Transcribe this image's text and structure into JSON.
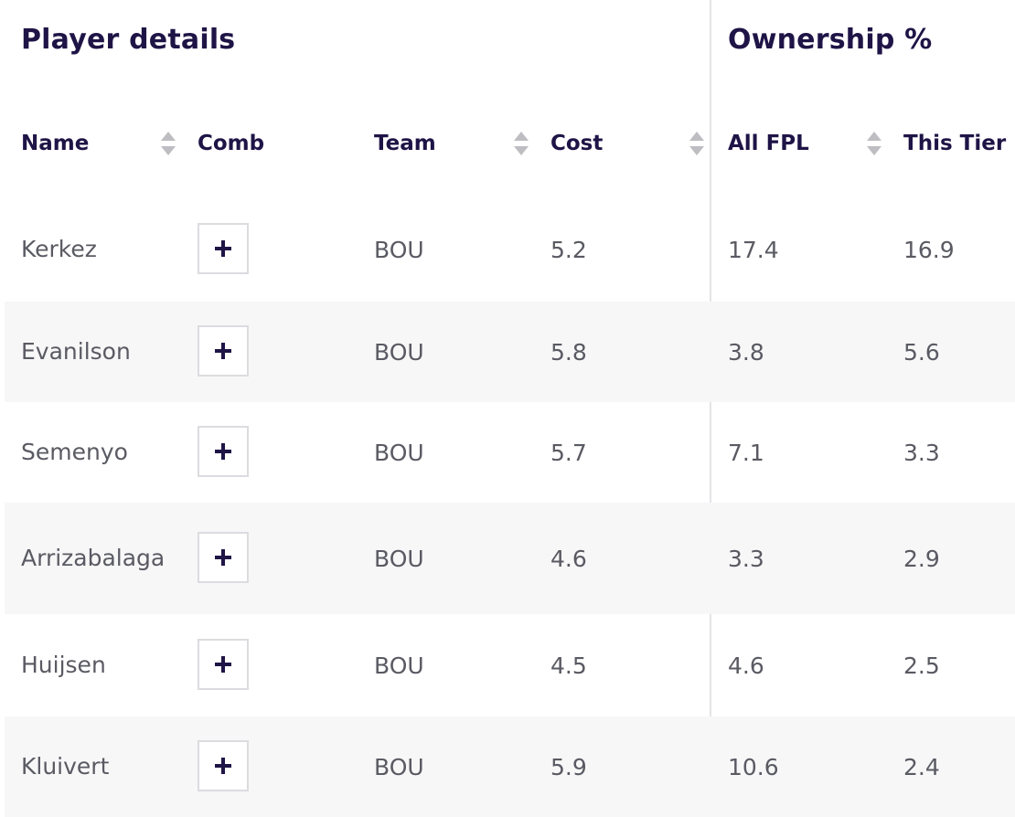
{
  "groups": {
    "player_details": "Player details",
    "ownership": "Ownership %"
  },
  "columns": {
    "name": "Name",
    "comb": "Comb",
    "team": "Team",
    "cost": "Cost",
    "all_fpl": "All FPL",
    "this_tier": "This Tier"
  },
  "icons": {
    "sort": "sort-icon",
    "add": "plus-icon"
  },
  "colors": {
    "heading": "#1f1446",
    "text": "#5a5a63",
    "row_shade": "#f7f7f8",
    "divider": "#e4e4e7",
    "sort_arrow": "#bdbdc2"
  },
  "rows": [
    {
      "name": "Kerkez",
      "team": "BOU",
      "cost": "5.2",
      "all_fpl": "17.4",
      "this_tier": "16.9"
    },
    {
      "name": "Evanilson",
      "team": "BOU",
      "cost": "5.8",
      "all_fpl": "3.8",
      "this_tier": "5.6"
    },
    {
      "name": "Semenyo",
      "team": "BOU",
      "cost": "5.7",
      "all_fpl": "7.1",
      "this_tier": "3.3"
    },
    {
      "name": "Arrizabalaga",
      "team": "BOU",
      "cost": "4.6",
      "all_fpl": "3.3",
      "this_tier": "2.9"
    },
    {
      "name": "Huijsen",
      "team": "BOU",
      "cost": "4.5",
      "all_fpl": "4.6",
      "this_tier": "2.5"
    },
    {
      "name": "Kluivert",
      "team": "BOU",
      "cost": "5.9",
      "all_fpl": "10.6",
      "this_tier": "2.4"
    }
  ]
}
